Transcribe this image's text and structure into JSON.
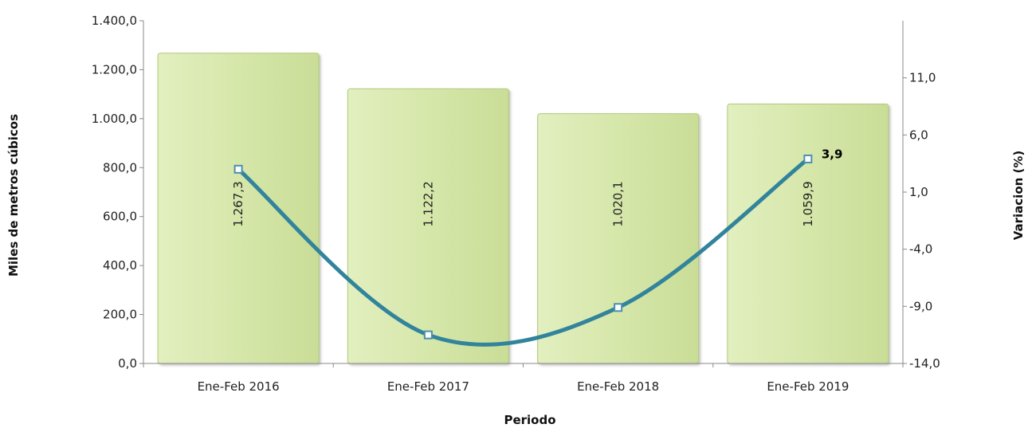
{
  "chart_data": {
    "type": "bar",
    "categories": [
      "Ene-Feb 2016",
      "Ene-Feb 2017",
      "Ene-Feb 2018",
      "Ene-Feb 2019"
    ],
    "series": [
      {
        "type": "bar",
        "axis": "left",
        "values": [
          1267.3,
          1122.2,
          1020.1,
          1059.9
        ],
        "data_labels": [
          "1.267,3",
          "1.122,2",
          "1.020,1",
          "1.059,9"
        ],
        "color": "#d4e6a5"
      },
      {
        "type": "line",
        "axis": "right",
        "values": [
          3.0,
          -11.5,
          -9.1,
          3.9
        ],
        "data_labels": [
          "",
          "",
          "",
          "3,9"
        ],
        "color": "#31849b"
      }
    ],
    "xlabel": "Periodo",
    "ylabel": "Miles de metros cúbicos",
    "ylabel_right": "Variacion (%)",
    "ylim": [
      0,
      1400
    ],
    "ylim_right": [
      -14,
      16
    ],
    "yticks": [
      "0,0",
      "200,0",
      "400,0",
      "600,0",
      "800,0",
      "1.000,0",
      "1.200,0",
      "1.400,0"
    ],
    "yticks_right": [
      "-14,0",
      "-9,0",
      "-4,0",
      "1,0",
      "6,0",
      "11,0"
    ],
    "grid": false,
    "legend": "none"
  }
}
